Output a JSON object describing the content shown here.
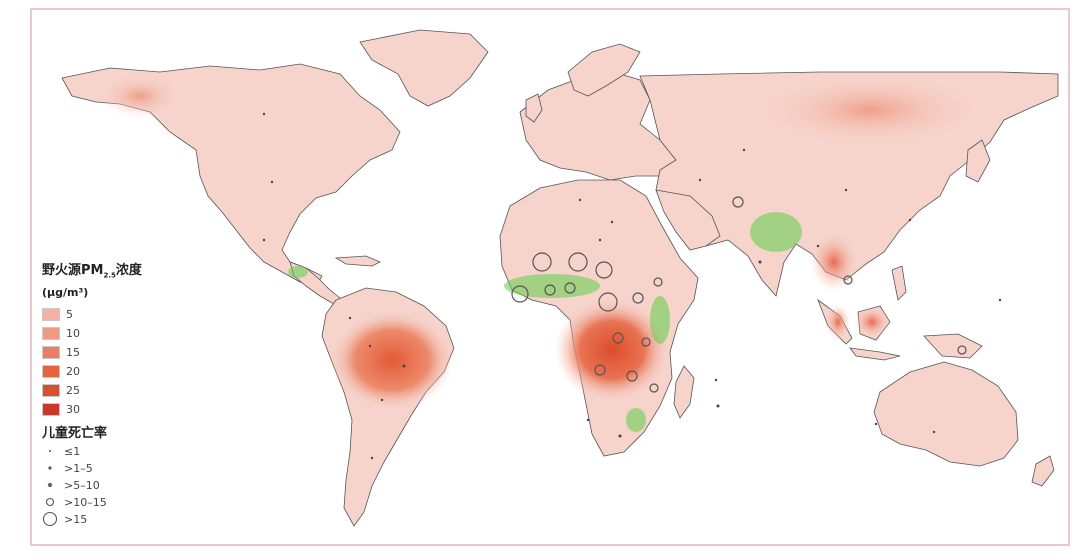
{
  "legend": {
    "title": "野火源PM",
    "title_sub": "2.5",
    "title_suffix": "浓度",
    "unit": "(μg/m³)",
    "concentration_levels": [
      {
        "label": "5",
        "color": "#f4b3a2"
      },
      {
        "label": "10",
        "color": "#ef9a82"
      },
      {
        "label": "15",
        "color": "#ea7f62"
      },
      {
        "label": "20",
        "color": "#e5643f"
      },
      {
        "label": "25",
        "color": "#d8502f"
      },
      {
        "label": "30",
        "color": "#c9382a"
      }
    ],
    "mortality_title": "儿童死亡率",
    "mortality_levels": [
      {
        "label": "≤1",
        "symbol": "dot-tiny"
      },
      {
        "label": ">1–5",
        "symbol": "dot-small"
      },
      {
        "label": ">5–10",
        "symbol": "dot-medium"
      },
      {
        "label": ">10–15",
        "symbol": "circle-small"
      },
      {
        "label": ">15",
        "symbol": "circle-large"
      }
    ]
  },
  "colors": {
    "land_base": "#f6d3cb",
    "land_border": "#555555",
    "hotspot": "#e2603d",
    "green_overlay": "#5fcf4a",
    "frame": "#e9c9d1"
  }
}
